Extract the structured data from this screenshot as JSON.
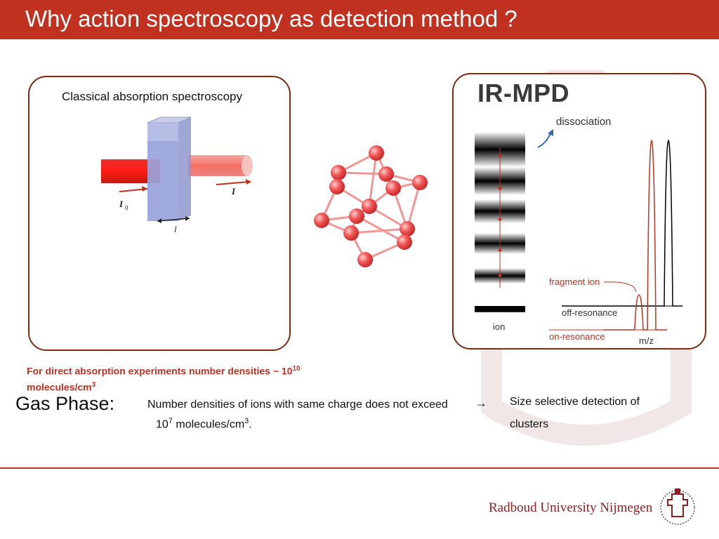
{
  "slide": {
    "title": "Why action spectroscopy as detection method ?"
  },
  "left_panel": {
    "label": "Classical absorption spectroscopy",
    "symbols": {
      "i0": "I",
      "i0_sub": "0",
      "i": "I",
      "l": "l"
    }
  },
  "right_panel": {
    "title": "IR-MPD",
    "labels": {
      "dissociation": "dissociation",
      "fragment_ion": "fragment ion",
      "off_resonance": "off-resonance",
      "on_resonance": "on-resonance",
      "ion": "ion",
      "mz": "m/z"
    }
  },
  "text": {
    "absorption_line1": "For direct absorption experiments number densities ~ 10",
    "absorption_exp": "10",
    "absorption_line2": "molecules/cm",
    "absorption_line2_exp": "3",
    "gas_phase": "Gas Phase:",
    "ions_line1": "Number densities of ions with same charge does not exceed",
    "ions_line2_base": "10",
    "ions_line2_exp": "7",
    "ions_line2_unit": " molecules/cm",
    "ions_line2_unit_exp": "3",
    "ions_line2_end": ".",
    "arrow": "→",
    "size_line1": "Size selective detection of",
    "size_line2": "clusters"
  },
  "footer": {
    "university": "Radboud University Nijmegen"
  },
  "colors": {
    "accent": "#c0311f",
    "panel_border": "#7a2a14"
  }
}
